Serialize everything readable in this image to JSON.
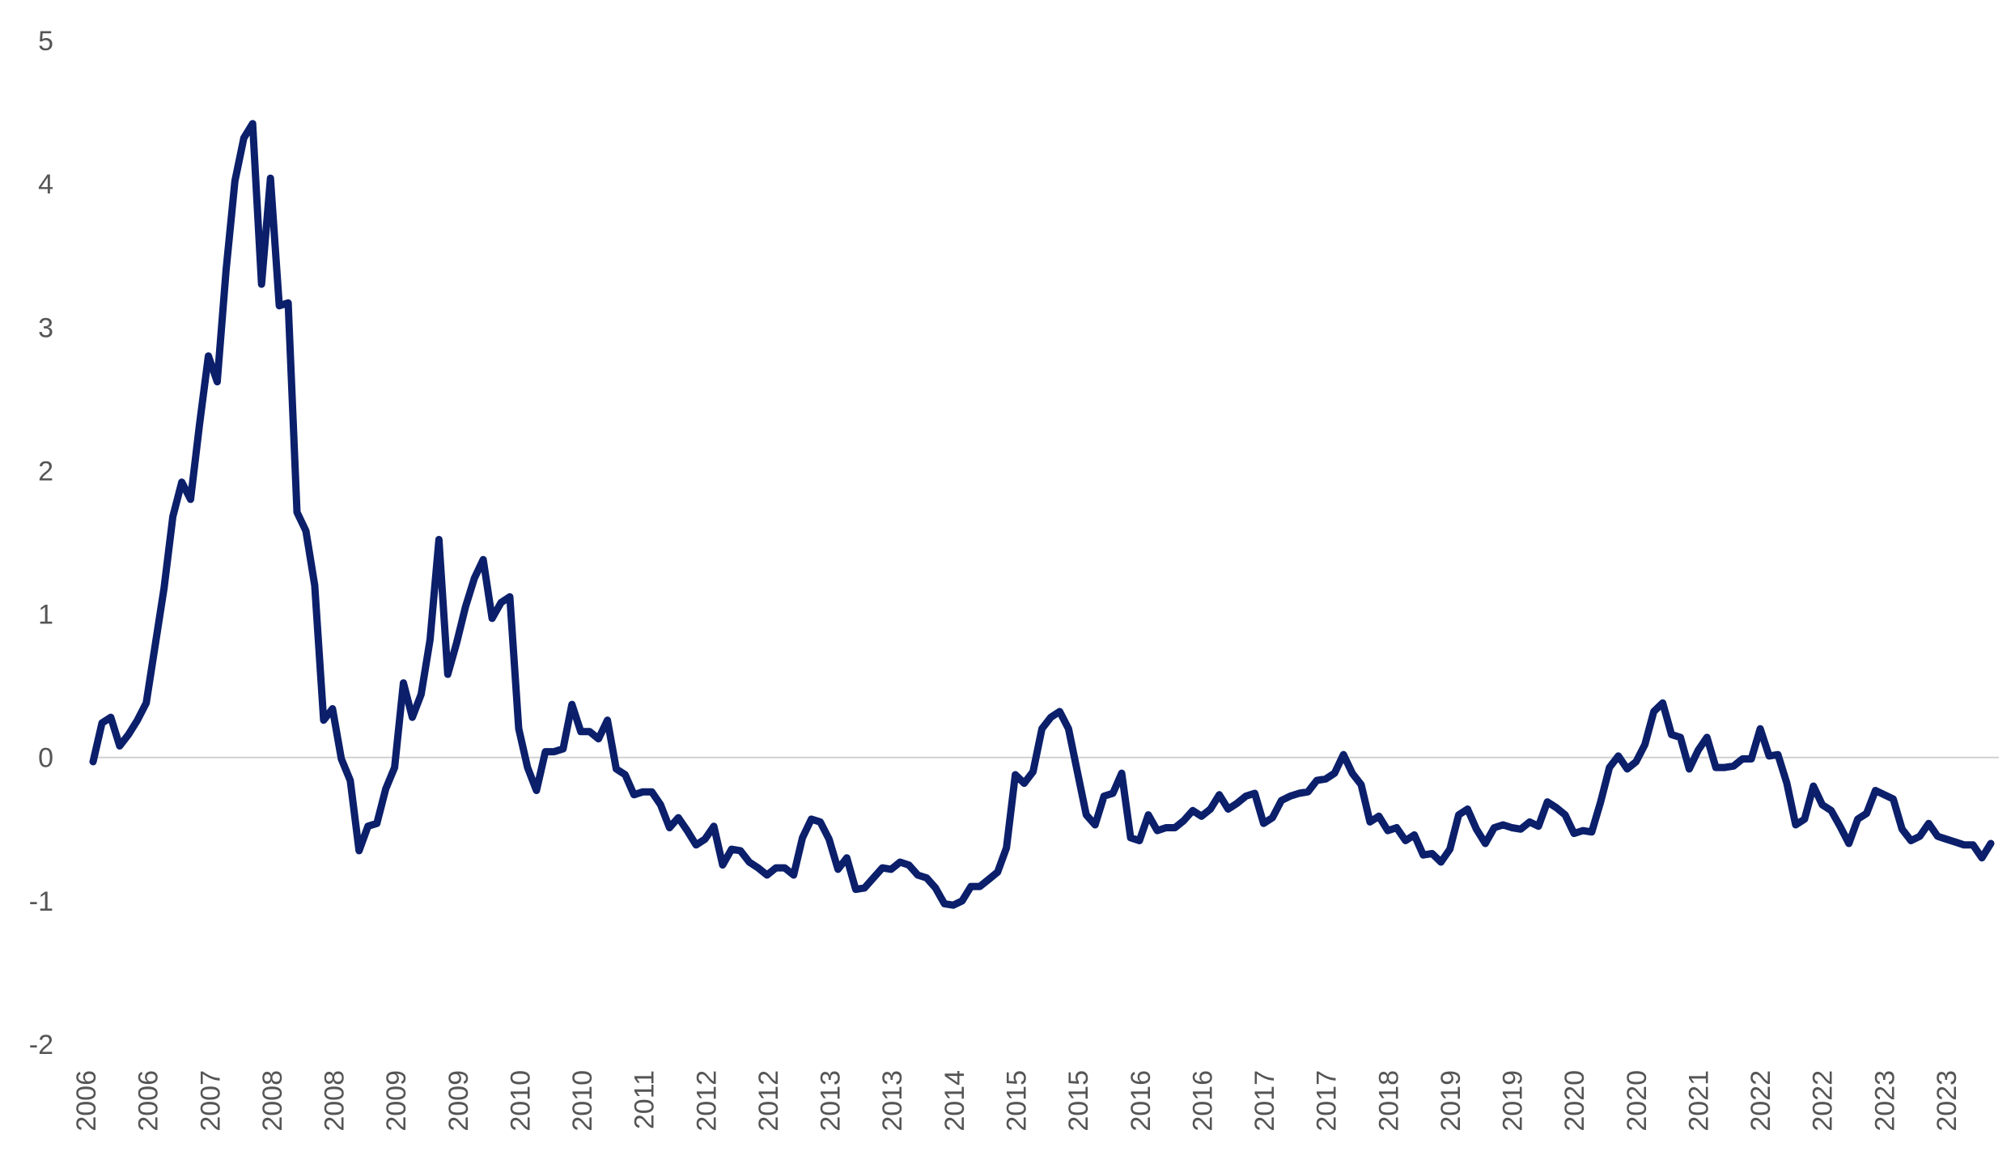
{
  "chart_data": {
    "type": "line",
    "title": "",
    "xlabel": "",
    "ylabel": "",
    "ylim": [
      -2,
      5
    ],
    "yticks": [
      5,
      4,
      3,
      2,
      1,
      0,
      -1,
      -2
    ],
    "ytick_labels": [
      "5",
      "4",
      "3",
      "2",
      "1",
      "0",
      "-1",
      "-2"
    ],
    "xtick_labels": [
      "2006",
      "2006",
      "2007",
      "2008",
      "2008",
      "2009",
      "2009",
      "2010",
      "2010",
      "2011",
      "2012",
      "2012",
      "2013",
      "2013",
      "2014",
      "2015",
      "2015",
      "2016",
      "2016",
      "2017",
      "2017",
      "2018",
      "2019",
      "2019",
      "2020",
      "2020",
      "2021",
      "2022",
      "2022",
      "2023",
      "2023"
    ],
    "grid": false,
    "zero_line": true,
    "colors": {
      "series": "#0b1f6b",
      "zero_line": "#d0d0d0"
    },
    "series": [
      {
        "values": [
          -0.03,
          0.24,
          0.28,
          0.08,
          0.16,
          0.26,
          0.38,
          0.78,
          1.18,
          1.68,
          1.92,
          1.8,
          2.32,
          2.8,
          2.62,
          3.4,
          4.02,
          4.32,
          4.42,
          3.3,
          4.04,
          3.15,
          3.17,
          1.71,
          1.58,
          1.2,
          0.26,
          0.34,
          -0.01,
          -0.16,
          -0.65,
          -0.48,
          -0.46,
          -0.22,
          -0.07,
          0.52,
          0.28,
          0.44,
          0.82,
          1.52,
          0.58,
          0.8,
          1.05,
          1.25,
          1.38,
          0.97,
          1.08,
          1.12,
          0.2,
          -0.07,
          -0.23,
          0.04,
          0.04,
          0.06,
          0.37,
          0.18,
          0.18,
          0.13,
          0.26,
          -0.08,
          -0.12,
          -0.26,
          -0.24,
          -0.24,
          -0.33,
          -0.49,
          -0.42,
          -0.51,
          -0.61,
          -0.57,
          -0.48,
          -0.75,
          -0.64,
          -0.65,
          -0.73,
          -0.77,
          -0.82,
          -0.77,
          -0.77,
          -0.82,
          -0.56,
          -0.43,
          -0.45,
          -0.57,
          -0.78,
          -0.7,
          -0.92,
          -0.91,
          -0.84,
          -0.77,
          -0.78,
          -0.73,
          -0.75,
          -0.82,
          -0.84,
          -0.91,
          -1.02,
          -1.03,
          -1.0,
          -0.9,
          -0.9,
          -0.85,
          -0.8,
          -0.63,
          -0.12,
          -0.18,
          -0.1,
          0.2,
          0.28,
          0.32,
          0.2,
          -0.1,
          -0.4,
          -0.47,
          -0.27,
          -0.25,
          -0.11,
          -0.56,
          -0.58,
          -0.4,
          -0.51,
          -0.49,
          -0.49,
          -0.44,
          -0.37,
          -0.41,
          -0.36,
          -0.26,
          -0.36,
          -0.32,
          -0.27,
          -0.25,
          -0.46,
          -0.42,
          -0.3,
          -0.27,
          -0.25,
          -0.24,
          -0.16,
          -0.15,
          -0.11,
          0.02,
          -0.11,
          -0.19,
          -0.45,
          -0.41,
          -0.51,
          -0.49,
          -0.58,
          -0.54,
          -0.68,
          -0.67,
          -0.73,
          -0.64,
          -0.4,
          -0.36,
          -0.5,
          -0.6,
          -0.49,
          -0.47,
          -0.49,
          -0.5,
          -0.45,
          -0.48,
          -0.31,
          -0.35,
          -0.4,
          -0.53,
          -0.51,
          -0.52,
          -0.31,
          -0.07,
          0.01,
          -0.08,
          -0.03,
          0.09,
          0.32,
          0.38,
          0.16,
          0.14,
          -0.08,
          0.05,
          0.14,
          -0.07,
          -0.07,
          -0.06,
          -0.01,
          -0.01,
          0.2,
          0.01,
          0.02,
          -0.18,
          -0.47,
          -0.43,
          -0.2,
          -0.33,
          -0.37,
          -0.48,
          -0.6,
          -0.43,
          -0.39,
          -0.23,
          -0.26,
          -0.29,
          -0.5,
          -0.58,
          -0.55,
          -0.46,
          -0.55,
          -0.57,
          -0.59,
          -0.61,
          -0.61,
          -0.7,
          -0.6
        ]
      }
    ]
  }
}
